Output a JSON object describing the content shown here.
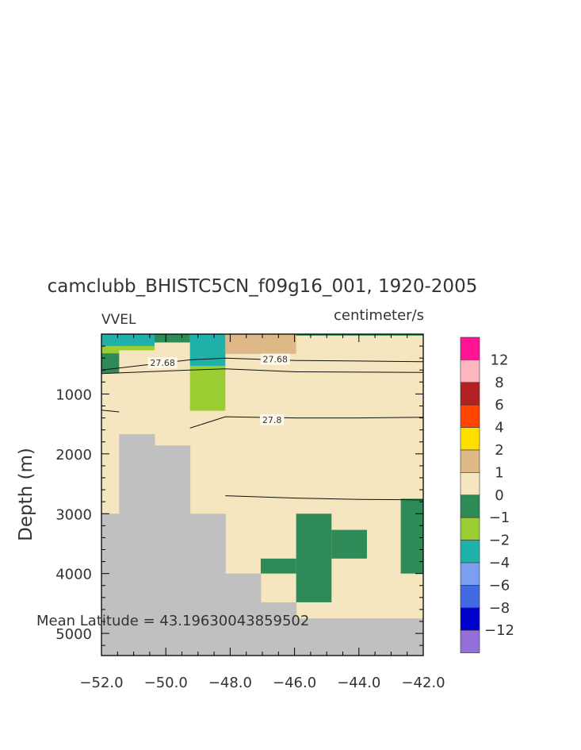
{
  "chart_data": {
    "type": "heatmap",
    "title": "camclubb_BHISTC5CN_f09g16_001, 1920-2005",
    "variable_label": "VVEL",
    "units_label": "centimeter/s",
    "ylabel": "Depth (m)",
    "xlabel": "",
    "xlim": [
      -52,
      -42
    ],
    "ylim": [
      5370,
      0
    ],
    "x_tick_labels": [
      "-52.0",
      "-50.0",
      "-48.0",
      "-46.0",
      "-44.0",
      "-42.0"
    ],
    "x_tick_values": [
      -52,
      -50,
      -48,
      -46,
      -44,
      -42
    ],
    "y_tick_labels": [
      "1000",
      "2000",
      "3000",
      "4000",
      "5000"
    ],
    "y_tick_values": [
      1000,
      2000,
      3000,
      4000,
      5000
    ],
    "annotation": "Mean Latitude = 43.19630043859502",
    "colorbar": {
      "labels": [
        "12",
        "8",
        "6",
        "4",
        "2",
        "1",
        "0",
        "-1",
        "-2",
        "-4",
        "-6",
        "-8",
        "-12"
      ],
      "colors": [
        "#ff1493",
        "#ffb6c1",
        "#b22222",
        "#ff4500",
        "#ffdf00",
        "#deb887",
        "#f5e6c0",
        "#2e8b57",
        "#9acd32",
        "#20b2aa",
        "#7b9ef0",
        "#4169e1",
        "#0000cd",
        "#9370db"
      ]
    },
    "background_color": "#f5e6c0",
    "land_color": "#c0c0c0",
    "land": [
      {
        "x": [
          -52,
          -51.45
        ],
        "depth": [
          3000,
          5370
        ]
      },
      {
        "x": [
          -51.45,
          -50.35
        ],
        "depth": [
          1670,
          5370
        ]
      },
      {
        "x": [
          -50.35,
          -49.25
        ],
        "depth": [
          1860,
          5370
        ]
      },
      {
        "x": [
          -49.25,
          -48.15
        ],
        "depth": [
          3000,
          5370
        ]
      },
      {
        "x": [
          -48.15,
          -47.05
        ],
        "depth": [
          4000,
          5370
        ]
      },
      {
        "x": [
          -47.05,
          -45.95
        ],
        "depth": [
          4480,
          5370
        ]
      },
      {
        "x": [
          -45.95,
          -42
        ],
        "depth": [
          4750,
          5370
        ]
      }
    ],
    "cells": [
      {
        "x": [
          -52,
          -50.35
        ],
        "depth": [
          0,
          200
        ],
        "value": -3
      },
      {
        "x": [
          -50.35,
          -49.25
        ],
        "depth": [
          0,
          140
        ],
        "value": -0.5
      },
      {
        "x": [
          -50.35,
          -49.25
        ],
        "depth": [
          140,
          270
        ],
        "value": 0.5
      },
      {
        "x": [
          -49.25,
          -48.15
        ],
        "depth": [
          0,
          530
        ],
        "value": -3
      },
      {
        "x": [
          -48.15,
          -45.95
        ],
        "depth": [
          0,
          330
        ],
        "value": 1.5
      },
      {
        "x": [
          -45.95,
          -42
        ],
        "depth": [
          0,
          25
        ],
        "value": -0.5
      },
      {
        "x": [
          -52,
          -51.45
        ],
        "depth": [
          200,
          320
        ],
        "value": -1.5
      },
      {
        "x": [
          -51.45,
          -50.35
        ],
        "depth": [
          200,
          270
        ],
        "value": -1.5
      },
      {
        "x": [
          -52,
          -51.45
        ],
        "depth": [
          320,
          650
        ],
        "value": -0.5
      },
      {
        "x": [
          -49.25,
          -48.15
        ],
        "depth": [
          530,
          1280
        ],
        "value": -1.5
      },
      {
        "x": [
          -45.95,
          -44.85
        ],
        "depth": [
          3000,
          4480
        ],
        "value": -0.5
      },
      {
        "x": [
          -44.85,
          -43.75
        ],
        "depth": [
          3270,
          3750
        ],
        "value": -0.5
      },
      {
        "x": [
          -47.05,
          -45.95
        ],
        "depth": [
          3750,
          4000
        ],
        "value": -0.5
      },
      {
        "x": [
          -42.7,
          -42
        ],
        "depth": [
          2750,
          4000
        ],
        "value": -0.5
      }
    ],
    "contours": [
      {
        "label": "27.68",
        "points": [
          [
            -52,
            600
          ],
          [
            -49.25,
            430
          ],
          [
            -48.15,
            400
          ],
          [
            -45.95,
            440
          ],
          [
            -44,
            450
          ],
          [
            -42,
            460
          ]
        ]
      },
      {
        "label": "",
        "points": [
          [
            -52,
            660
          ],
          [
            -49.25,
            600
          ],
          [
            -48.15,
            580
          ],
          [
            -45.95,
            630
          ],
          [
            -42,
            640
          ]
        ]
      },
      {
        "label": "27.8",
        "points": [
          [
            -49.25,
            1570
          ],
          [
            -48.15,
            1380
          ],
          [
            -45.95,
            1400
          ],
          [
            -44,
            1400
          ],
          [
            -42,
            1390
          ]
        ]
      },
      {
        "label": "",
        "points": [
          [
            -52,
            1270
          ],
          [
            -51.45,
            1300
          ]
        ]
      },
      {
        "label": "",
        "points": [
          [
            -48.15,
            2700
          ],
          [
            -45.95,
            2740
          ],
          [
            -44,
            2760
          ],
          [
            -42,
            2770
          ]
        ]
      }
    ],
    "contour_label_positions": [
      {
        "text": "27.68",
        "x": -50.1,
        "depth": 480
      },
      {
        "text": "27.68",
        "x": -46.6,
        "depth": 420
      },
      {
        "text": "27.8",
        "x": -46.7,
        "depth": 1430
      }
    ]
  }
}
